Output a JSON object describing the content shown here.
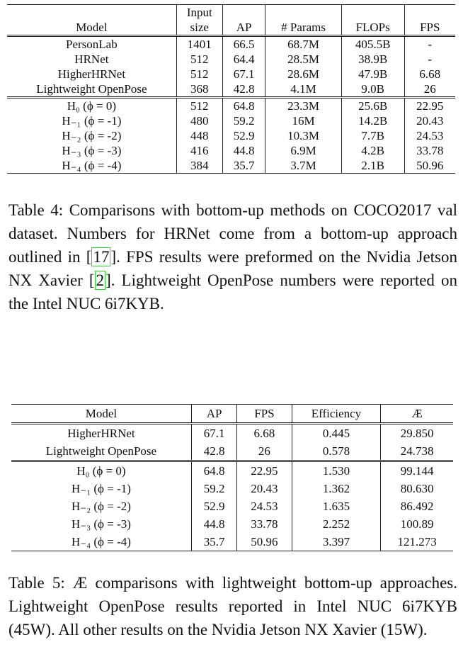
{
  "table4": {
    "columns": [
      "Model",
      "Input size",
      "AP",
      "# Params",
      "FLOPs",
      "FPS"
    ],
    "body": [
      [
        [
          "PersonLab",
          "1401",
          "66.5",
          "68.7M",
          "405.5B",
          "-"
        ],
        [
          "HRNet",
          "512",
          "64.4",
          "28.5M",
          "38.9B",
          "-"
        ],
        [
          "HigherHRNet",
          "512",
          "67.1",
          "28.6M",
          "47.9B",
          "6.68"
        ],
        [
          "Lightweight OpenPose",
          "368",
          "42.8",
          "4.1M",
          "9.0B",
          "26"
        ]
      ],
      [
        [
          "H₀ (ϕ = 0)",
          "512",
          "64.8",
          "23.3M",
          "25.6B",
          "22.95"
        ],
        [
          "H₋₁ (ϕ = -1)",
          "480",
          "59.2",
          "16M",
          "14.2B",
          "20.43"
        ],
        [
          "H₋₂ (ϕ = -2)",
          "448",
          "52.9",
          "10.3M",
          "7.7B",
          "24.53"
        ],
        [
          "H₋₃ (ϕ = -3)",
          "416",
          "44.8",
          "6.9M",
          "4.2B",
          "33.78"
        ],
        [
          "H₋₄ (ϕ = -4)",
          "384",
          "35.7",
          "3.7M",
          "2.1B",
          "50.96"
        ]
      ]
    ],
    "caption": [
      "Table 4: Comparisons with bottom-up methods on COCO2017 val dataset. Numbers for HRNet come from a bottom-up approach outlined in [",
      "17",
      "]. FPS results were preformed on the Nvidia Jetson NX Xavier [",
      "2",
      "]. Lightweight OpenPose numbers were reported on the Intel NUC 6i7KYB."
    ]
  },
  "table5": {
    "columns": [
      "Model",
      "AP",
      "FPS",
      "Efficiency",
      "Æ"
    ],
    "body": [
      [
        [
          "HigherHRNet",
          "67.1",
          "6.68",
          "0.445",
          "29.850"
        ],
        [
          "Lightweight OpenPose",
          "42.8",
          "26",
          "0.578",
          "24.738"
        ]
      ],
      [
        [
          "H₀ (ϕ = 0)",
          "64.8",
          "22.95",
          "1.530",
          "99.144"
        ],
        [
          "H₋₁ (ϕ = -1)",
          "59.2",
          "20.43",
          "1.362",
          "80.630"
        ],
        [
          "H₋₂ (ϕ = -2)",
          "52.9",
          "24.53",
          "1.635",
          "86.492"
        ],
        [
          "H₋₃ (ϕ = -3)",
          "44.8",
          "33.78",
          "2.252",
          "100.89"
        ],
        [
          "H₋₄ (ϕ = -4)",
          "35.7",
          "50.96",
          "3.397",
          "121.273"
        ]
      ]
    ],
    "caption": [
      "Table 5: Æ comparisons with lightweight bottom-up approaches. Lightweight OpenPose results reported in Intel NUC 6i7KYB (45W). All other results on the Nvidia Jetson NX Xavier (15W)."
    ]
  }
}
